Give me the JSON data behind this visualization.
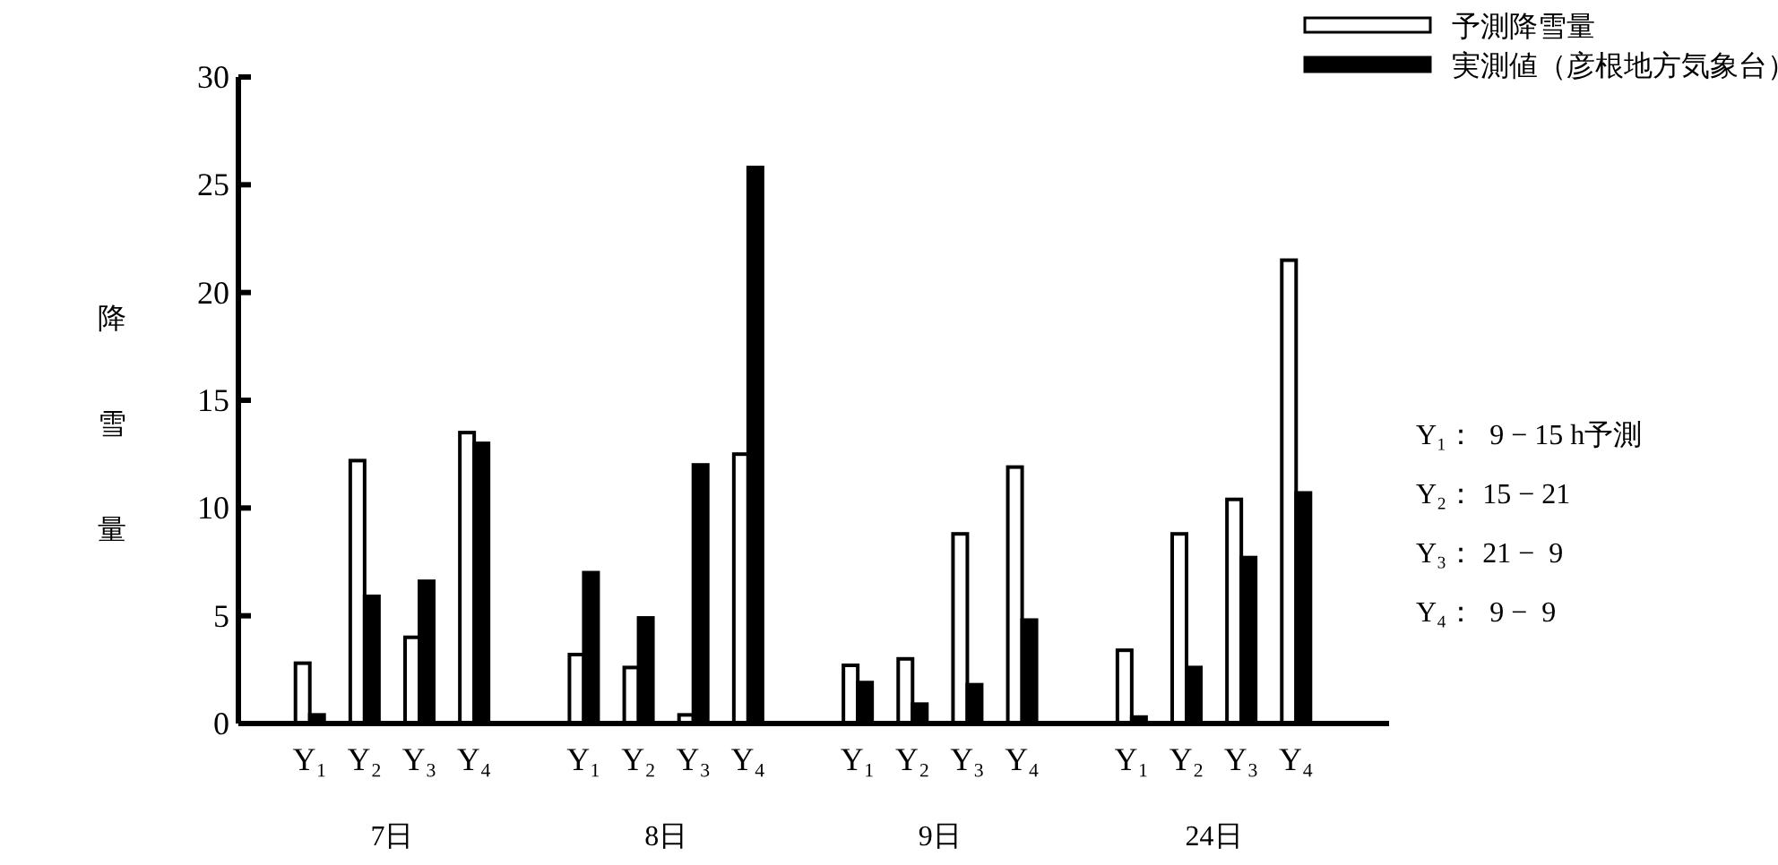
{
  "chart_data": {
    "type": "bar",
    "ylabel": "降雪量",
    "categories": [
      null,
      "Y₁",
      "Y₂",
      "Y₃",
      "Y₄",
      null,
      "Y₁",
      "Y₂",
      "Y₃",
      "Y₄",
      null,
      "Y₁",
      "Y₂",
      "Y₃",
      "Y₄",
      null,
      "Y₁",
      "Y₂",
      "Y₃",
      "Y₄",
      null
    ],
    "series": [
      {
        "name": "予測降雪量",
        "color": "#ffffff",
        "values": [
          null,
          2.8,
          12.2,
          4.0,
          13.5,
          null,
          3.2,
          2.6,
          0.4,
          12.5,
          null,
          2.7,
          3.0,
          8.8,
          11.9,
          null,
          3.4,
          8.8,
          10.4,
          21.5,
          null
        ]
      },
      {
        "name": "実測値（彦根地方気象台）",
        "color": "#000000",
        "values": [
          null,
          0.4,
          5.9,
          6.6,
          13.0,
          null,
          7.0,
          4.9,
          12.0,
          25.8,
          null,
          1.9,
          0.9,
          1.8,
          4.8,
          null,
          0.3,
          2.6,
          7.7,
          10.7,
          null
        ]
      }
    ],
    "ylim": [
      0,
      30
    ],
    "yticks": [
      0,
      5,
      10,
      15,
      20,
      25,
      30
    ],
    "grid": false,
    "legend": "top right",
    "annotations": [
      "7日",
      "8日",
      "9日",
      "24日",
      "Y₁：  9 − 15 h予測",
      "Y₂： 15 − 21",
      "Y₃： 21 −  9",
      "Y₄：  9 −  9"
    ]
  }
}
